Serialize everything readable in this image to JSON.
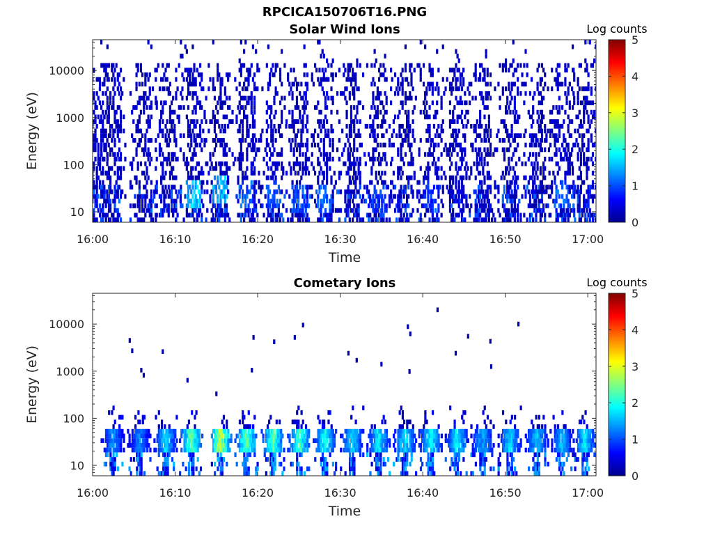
{
  "figure": {
    "title": "RPCICA150706T16.PNG"
  },
  "colorscale": [
    "#00008f",
    "#0000ff",
    "#0080ff",
    "#00ffff",
    "#80ff80",
    "#ffff00",
    "#ff8000",
    "#ff0000",
    "#800000"
  ],
  "chart_data": [
    {
      "type": "heatmap",
      "title": "Solar Wind Ions",
      "xlabel": "Time",
      "ylabel": "Energy (eV)",
      "x_ticks": [
        "16:00",
        "16:10",
        "16:20",
        "16:30",
        "16:40",
        "16:50",
        "17:00"
      ],
      "x_range": [
        "16:00",
        "17:01"
      ],
      "y_scale": "log",
      "y_ticks": [
        10,
        100,
        1000,
        10000
      ],
      "y_tick_labels": [
        "10",
        "100",
        "1000",
        "10000"
      ],
      "y_range": [
        6,
        45000
      ],
      "colorbar": {
        "label": "Log counts",
        "range": [
          0,
          5
        ],
        "ticks": [
          "0",
          "1",
          "2",
          "3",
          "4",
          "5"
        ]
      },
      "sweep_times_min": [
        0.5,
        2.5,
        6.2,
        9.2,
        12.3,
        15.5,
        18.7,
        22.0,
        25.1,
        28.2,
        31.5,
        34.7,
        37.9,
        41.0,
        44.2,
        47.3,
        50.6,
        53.9,
        56.9,
        59.7
      ],
      "sweep_peak": [
        {
          "time_min": 12.0,
          "energy_eV": 25,
          "log_counts": 1.9
        },
        {
          "time_min": 15.5,
          "energy_eV": 30,
          "log_counts": 1.8
        },
        {
          "time_min": 18.7,
          "energy_eV": 25,
          "log_counts": 1.3
        },
        {
          "time_min": 22.0,
          "energy_eV": 25,
          "log_counts": 1.2
        },
        {
          "time_min": 25.1,
          "energy_eV": 20,
          "log_counts": 1.2
        },
        {
          "time_min": 28.2,
          "energy_eV": 20,
          "log_counts": 1.3
        },
        {
          "time_min": 34.7,
          "energy_eV": 20,
          "log_counts": 1.1
        },
        {
          "time_min": 41.0,
          "energy_eV": 25,
          "log_counts": 1.0
        },
        {
          "time_min": 56.9,
          "energy_eV": 25,
          "log_counts": 1.3
        }
      ],
      "background_log_counts": 0.1
    },
    {
      "type": "heatmap",
      "title": "Cometary Ions",
      "xlabel": "Time",
      "ylabel": "Energy (eV)",
      "x_ticks": [
        "16:00",
        "16:10",
        "16:20",
        "16:30",
        "16:40",
        "16:50",
        "17:00"
      ],
      "x_range": [
        "16:00",
        "17:01"
      ],
      "y_scale": "log",
      "y_ticks": [
        10,
        100,
        1000,
        10000
      ],
      "y_tick_labels": [
        "10",
        "100",
        "1000",
        "10000"
      ],
      "y_range": [
        6,
        45000
      ],
      "colorbar": {
        "label": "Log counts",
        "range": [
          0,
          5
        ],
        "ticks": [
          "0",
          "1",
          "2",
          "3",
          "4",
          "5"
        ]
      },
      "sweep_times_min": [
        2.5,
        5.7,
        8.9,
        12.0,
        15.5,
        18.7,
        21.9,
        25.1,
        28.2,
        31.5,
        34.7,
        37.9,
        41.0,
        44.2,
        47.3,
        50.6,
        53.9,
        56.9,
        59.7
      ],
      "peak_log_counts": [
        1.5,
        1.4,
        1.9,
        2.6,
        3.1,
        2.6,
        2.5,
        2.5,
        2.2,
        1.9,
        2.0,
        2.0,
        2.1,
        2.0,
        1.6,
        1.9,
        1.8,
        1.7,
        2.0
      ],
      "peak_energy_eV": 35,
      "sparse_points": [
        {
          "time_min": 4.5,
          "energy_eV": 4500
        },
        {
          "time_min": 4.8,
          "energy_eV": 2700
        },
        {
          "time_min": 5.9,
          "energy_eV": 1050
        },
        {
          "time_min": 6.2,
          "energy_eV": 820
        },
        {
          "time_min": 8.5,
          "energy_eV": 2600
        },
        {
          "time_min": 11.5,
          "energy_eV": 640
        },
        {
          "time_min": 15.0,
          "energy_eV": 330
        },
        {
          "time_min": 19.3,
          "energy_eV": 1050
        },
        {
          "time_min": 19.5,
          "energy_eV": 5200
        },
        {
          "time_min": 22.0,
          "energy_eV": 4200
        },
        {
          "time_min": 24.5,
          "energy_eV": 5200
        },
        {
          "time_min": 25.5,
          "energy_eV": 9500
        },
        {
          "time_min": 31.0,
          "energy_eV": 2400
        },
        {
          "time_min": 32.0,
          "energy_eV": 1700
        },
        {
          "time_min": 35.0,
          "energy_eV": 1400
        },
        {
          "time_min": 38.2,
          "energy_eV": 8800
        },
        {
          "time_min": 38.5,
          "energy_eV": 6200
        },
        {
          "time_min": 38.4,
          "energy_eV": 980
        },
        {
          "time_min": 41.8,
          "energy_eV": 20000
        },
        {
          "time_min": 44.0,
          "energy_eV": 2400
        },
        {
          "time_min": 45.5,
          "energy_eV": 5500
        },
        {
          "time_min": 48.2,
          "energy_eV": 4300
        },
        {
          "time_min": 48.3,
          "energy_eV": 1250
        },
        {
          "time_min": 51.6,
          "energy_eV": 10000
        }
      ]
    }
  ]
}
